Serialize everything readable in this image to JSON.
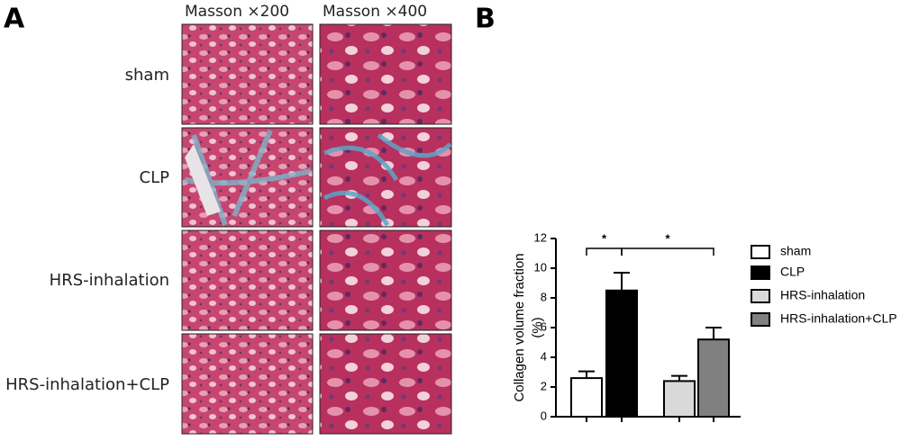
{
  "panel_a": {
    "label": "A",
    "columns": [
      "Masson ×200",
      "Masson ×400"
    ],
    "rows": [
      "sham",
      "CLP",
      "HRS-inhalation",
      "HRS-inhalation+CLP"
    ]
  },
  "chart_data": {
    "type": "bar",
    "panel_label": "B",
    "ylabel": [
      "Collagen volume fraction",
      "(%)"
    ],
    "categories": [
      "sham",
      "CLP",
      "HRS-inhalation",
      "HRS-inhalation+CLP"
    ],
    "values": [
      2.6,
      8.5,
      2.4,
      5.2
    ],
    "errors": [
      0.45,
      1.2,
      0.35,
      0.8
    ],
    "colors": [
      "#ffffff",
      "#000000",
      "#d9d9d9",
      "#808080"
    ],
    "ylim": [
      0,
      12
    ],
    "yticks": [
      0,
      2,
      4,
      6,
      8,
      10,
      12
    ],
    "significance": [
      {
        "label": "*",
        "pair": [
          0,
          1
        ]
      },
      {
        "label": "*",
        "pair": [
          1,
          3
        ]
      }
    ]
  }
}
